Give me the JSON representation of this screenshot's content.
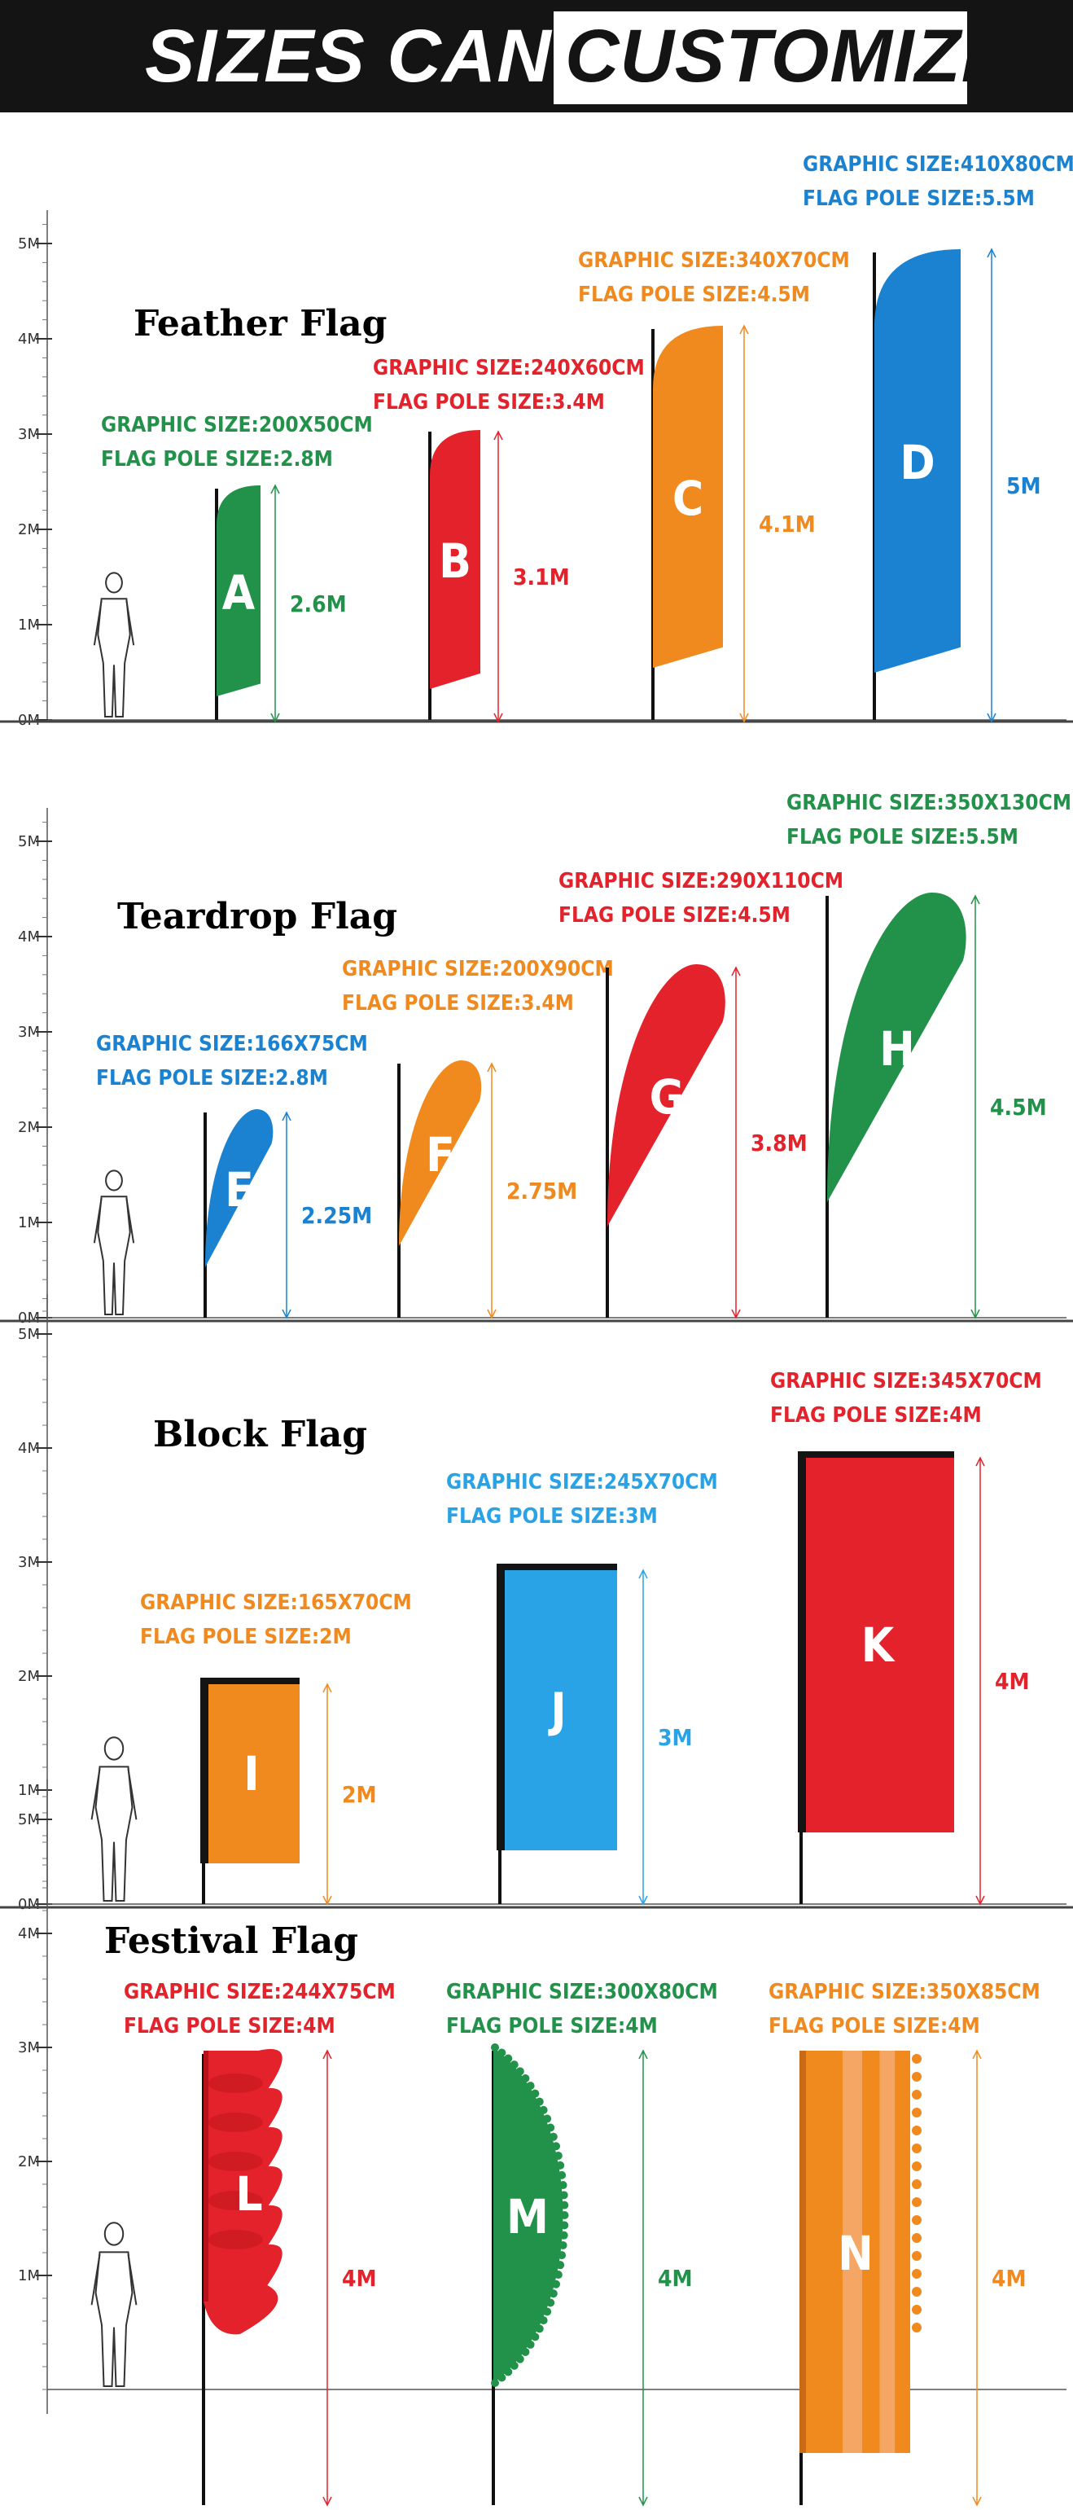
{
  "banner": {
    "text_plain": "SIZES CAN BE",
    "text_boxed": "CUSTOMIZED"
  },
  "colors": {
    "green": "#22924a",
    "red": "#e3222b",
    "orange": "#f08a1f",
    "blue": "#1a82d0",
    "lightblue": "#2aa3e6",
    "black": "#141414"
  },
  "panels": [
    {
      "title": "Feather Flag",
      "axis": [
        "0M",
        "1M",
        "2M",
        "3M",
        "4M",
        "5M"
      ],
      "flags": [
        {
          "letter": "A",
          "graphic": "GRAPHIC SIZE:200X50CM",
          "pole": "FLAG POLE SIZE:2.8M",
          "height": "2.6M",
          "color": "green",
          "shape": "feather"
        },
        {
          "letter": "B",
          "graphic": "GRAPHIC SIZE:240X60CM",
          "pole": "FLAG POLE SIZE:3.4M",
          "height": "3.1M",
          "color": "red",
          "shape": "feather"
        },
        {
          "letter": "C",
          "graphic": "GRAPHIC SIZE:340X70CM",
          "pole": "FLAG POLE SIZE:4.5M",
          "height": "4.1M",
          "color": "orange",
          "shape": "feather"
        },
        {
          "letter": "D",
          "graphic": "GRAPHIC SIZE:410X80CM",
          "pole": "FLAG POLE SIZE:5.5M",
          "height": "5M",
          "color": "blue",
          "shape": "feather"
        }
      ]
    },
    {
      "title": "Teardrop Flag",
      "axis": [
        "0M",
        "1M",
        "2M",
        "3M",
        "4M",
        "5M"
      ],
      "flags": [
        {
          "letter": "E",
          "graphic": "GRAPHIC SIZE:166X75CM",
          "pole": "FLAG POLE SIZE:2.8M",
          "height": "2.25M",
          "color": "blue",
          "shape": "teardrop"
        },
        {
          "letter": "F",
          "graphic": "GRAPHIC SIZE:200X90CM",
          "pole": "FLAG POLE SIZE:3.4M",
          "height": "2.75M",
          "color": "orange",
          "shape": "teardrop"
        },
        {
          "letter": "G",
          "graphic": "GRAPHIC SIZE:290X110CM",
          "pole": "FLAG POLE SIZE:4.5M",
          "height": "3.8M",
          "color": "red",
          "shape": "teardrop"
        },
        {
          "letter": "H",
          "graphic": "GRAPHIC SIZE:350X130CM",
          "pole": "FLAG POLE SIZE:5.5M",
          "height": "4.5M",
          "color": "green",
          "shape": "teardrop"
        }
      ]
    },
    {
      "title": "Block Flag",
      "axis": [
        "0M",
        "1M",
        "2M",
        "3M",
        "4M",
        "5M"
      ],
      "flags": [
        {
          "letter": "I",
          "graphic": "GRAPHIC SIZE:165X70CM",
          "pole": "FLAG POLE SIZE:2M",
          "height": "2M",
          "color": "orange",
          "shape": "block"
        },
        {
          "letter": "J",
          "graphic": "GRAPHIC SIZE:245X70CM",
          "pole": "FLAG POLE SIZE:3M",
          "height": "3M",
          "color": "lightblue",
          "shape": "block"
        },
        {
          "letter": "K",
          "graphic": "GRAPHIC SIZE:345X70CM",
          "pole": "FLAG POLE SIZE:4M",
          "height": "4M",
          "color": "red",
          "shape": "block"
        }
      ]
    },
    {
      "title": "Festival Flag",
      "axis": [
        "1M",
        "2M",
        "3M",
        "4M",
        "5M"
      ],
      "flags": [
        {
          "letter": "L",
          "graphic": "GRAPHIC SIZE:244X75CM",
          "pole": "FLAG POLE SIZE:4M",
          "height": "4M",
          "color": "red",
          "shape": "festival-waves"
        },
        {
          "letter": "M",
          "graphic": "GRAPHIC SIZE:300X80CM",
          "pole": "FLAG POLE SIZE:4M",
          "height": "4M",
          "color": "green",
          "shape": "festival-fringe"
        },
        {
          "letter": "N",
          "graphic": "GRAPHIC SIZE:350X85CM",
          "pole": "FLAG POLE SIZE:4M",
          "height": "4M",
          "color": "orange",
          "shape": "festival-beads"
        }
      ]
    }
  ]
}
